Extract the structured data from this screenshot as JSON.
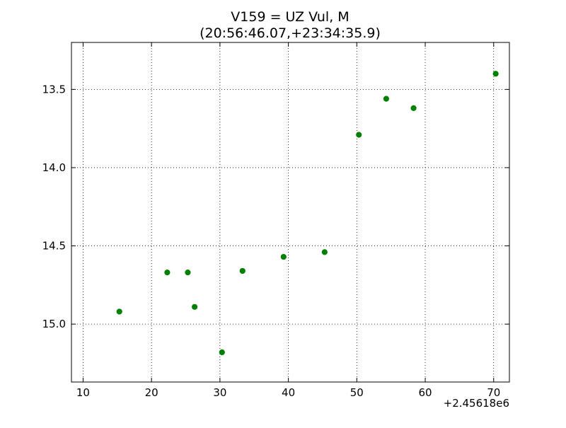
{
  "chart_data": {
    "type": "scatter",
    "title_line1": "V159 = UZ Vul, M",
    "title_line2": "(20:56:46.07,+23:34:35.9)",
    "xlabel": "",
    "ylabel": "",
    "x_offset_label": "+2.45618e6",
    "xlim": [
      8.3,
      72.3
    ],
    "ylim": [
      15.37,
      13.2
    ],
    "y_inverted": true,
    "x_ticks": [
      10,
      20,
      30,
      40,
      50,
      60,
      70
    ],
    "x_tick_labels": [
      "10",
      "20",
      "30",
      "40",
      "50",
      "60",
      "70"
    ],
    "y_ticks": [
      13.5,
      14.0,
      14.5,
      15.0
    ],
    "y_tick_labels": [
      "13.5",
      "14.0",
      "14.5",
      "15.0"
    ],
    "grid": true,
    "marker_color": "#008000",
    "points": [
      {
        "x": 15.3,
        "y": 14.92
      },
      {
        "x": 22.3,
        "y": 14.67
      },
      {
        "x": 25.3,
        "y": 14.67
      },
      {
        "x": 26.3,
        "y": 14.89
      },
      {
        "x": 30.3,
        "y": 15.18
      },
      {
        "x": 33.3,
        "y": 14.66
      },
      {
        "x": 39.3,
        "y": 14.57
      },
      {
        "x": 45.3,
        "y": 14.54
      },
      {
        "x": 50.3,
        "y": 13.79
      },
      {
        "x": 54.3,
        "y": 13.56
      },
      {
        "x": 58.3,
        "y": 13.62
      },
      {
        "x": 70.3,
        "y": 13.4
      }
    ]
  }
}
